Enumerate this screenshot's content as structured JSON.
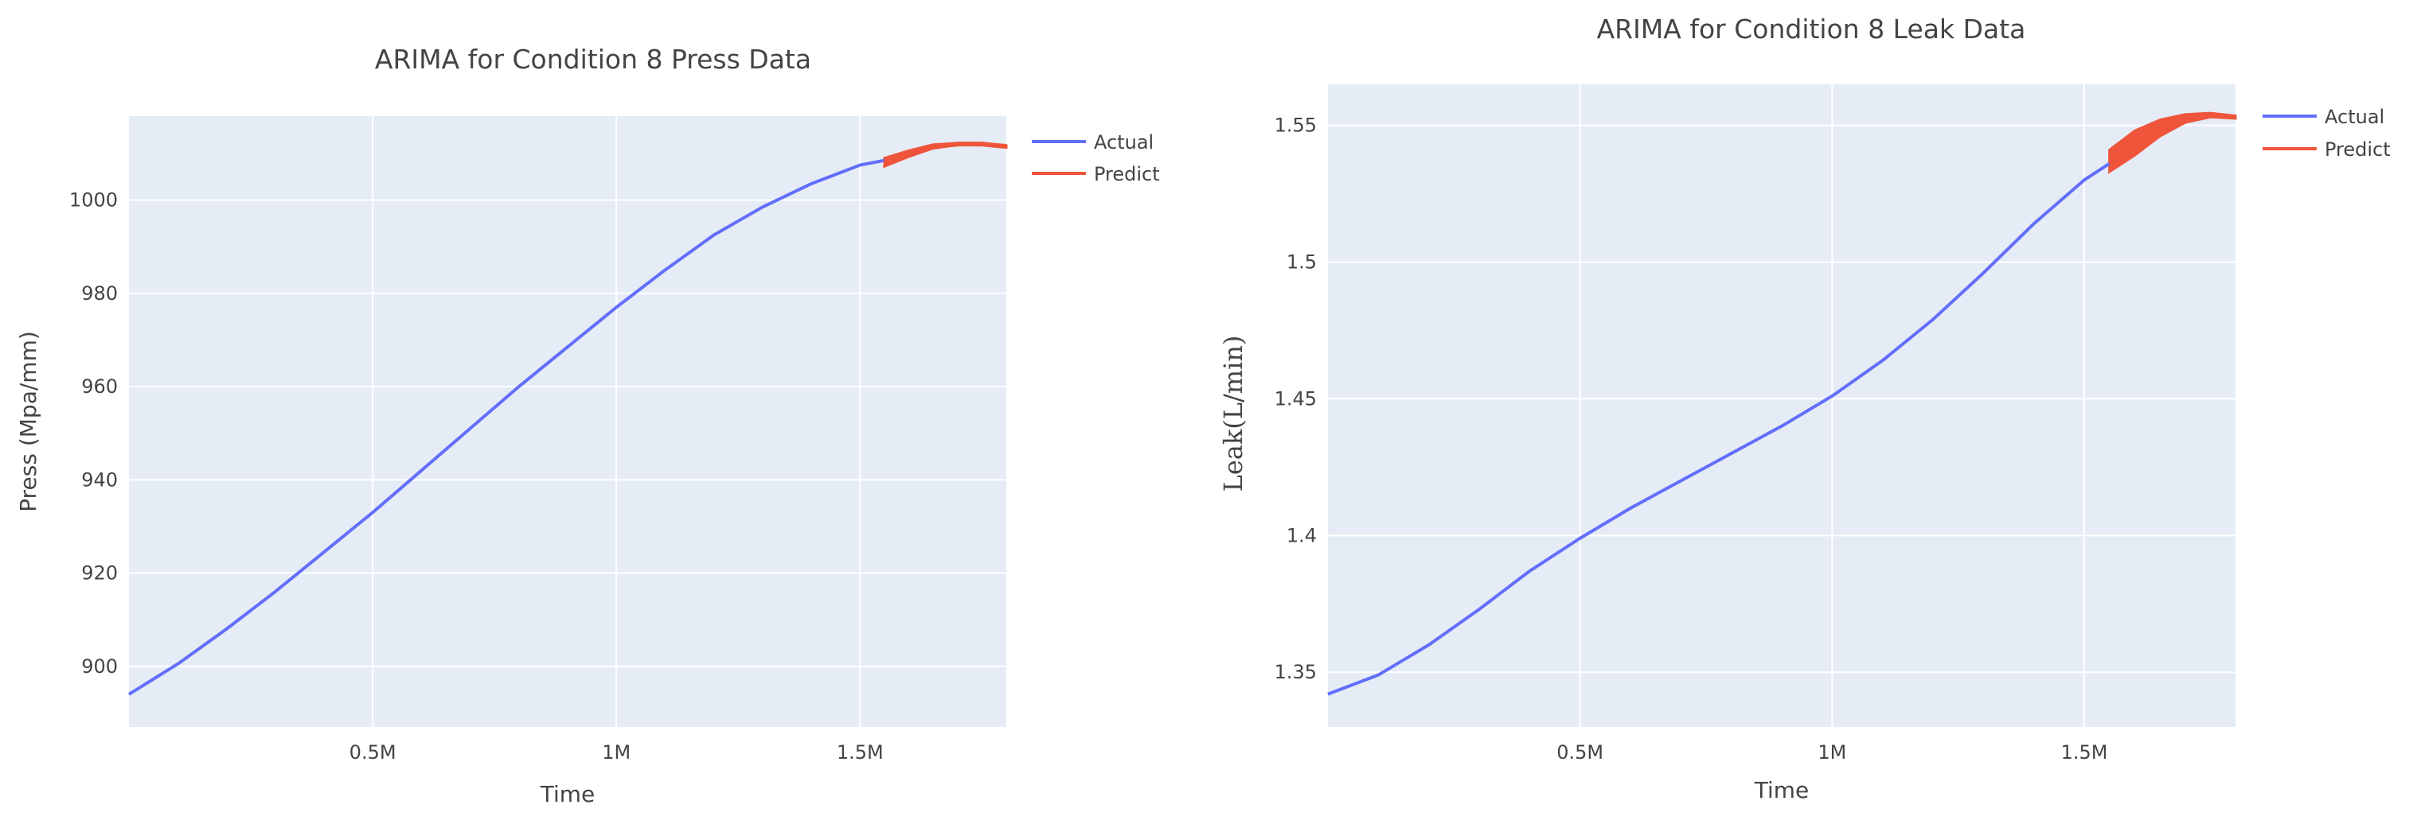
{
  "colors": {
    "plot_bg": "#e5ecf6",
    "grid": "#ffffff",
    "actual": "#636efa",
    "predict": "#ef553b"
  },
  "chart_data": [
    {
      "type": "line",
      "title": "ARIMA for Condition 8 Press Data",
      "xlabel": "Time",
      "ylabel": "Press (Mpa/mm)",
      "xlim": [
        0,
        1800000
      ],
      "ylim": [
        887,
        1018
      ],
      "xticks": [
        500000,
        1000000,
        1500000
      ],
      "xtick_labels": [
        "0.5M",
        "1M",
        "1.5M"
      ],
      "yticks": [
        900,
        920,
        940,
        960,
        980,
        1000
      ],
      "ytick_labels": [
        "900",
        "920",
        "940",
        "960",
        "980",
        "1000"
      ],
      "grid": true,
      "legend_position": "right",
      "series": [
        {
          "name": "Actual",
          "x": [
            0,
            100000,
            200000,
            300000,
            400000,
            500000,
            600000,
            700000,
            800000,
            900000,
            1000000,
            1100000,
            1200000,
            1300000,
            1400000,
            1500000,
            1550000
          ],
          "y": [
            894,
            900.5,
            908,
            916,
            924.5,
            933,
            942,
            951,
            960,
            968.5,
            977,
            985,
            992.5,
            998.5,
            1003.5,
            1007.5,
            1008.5
          ]
        },
        {
          "name": "Predict",
          "x": [
            1550000,
            1600000,
            1650000,
            1700000,
            1750000,
            1800000
          ],
          "y": [
            1008,
            1010,
            1011.5,
            1012,
            1012,
            1011.5
          ],
          "band_upper": [
            1009,
            1010.6,
            1011.9,
            1012.2,
            1012.1,
            1011.7
          ],
          "band_lower": [
            1007.2,
            1009.3,
            1011.1,
            1011.8,
            1011.9,
            1011.3
          ]
        }
      ]
    },
    {
      "type": "line",
      "title": "ARIMA for Condition 8 Leak Data",
      "xlabel": "Time",
      "ylabel": "Leak(L/min)",
      "xlim": [
        0,
        1800000
      ],
      "ylim": [
        1.33,
        1.565
      ],
      "xticks": [
        500000,
        1000000,
        1500000
      ],
      "xtick_labels": [
        "0.5M",
        "1M",
        "1.5M"
      ],
      "yticks": [
        1.35,
        1.4,
        1.45,
        1.5,
        1.55
      ],
      "ytick_labels": [
        "1.35",
        "1.4",
        "1.45",
        "1.5",
        "1.55"
      ],
      "grid": true,
      "legend_position": "right",
      "series": [
        {
          "name": "Actual",
          "x": [
            0,
            100000,
            200000,
            300000,
            400000,
            500000,
            600000,
            700000,
            800000,
            900000,
            1000000,
            1100000,
            1200000,
            1300000,
            1400000,
            1500000,
            1550000
          ],
          "y": [
            1.342,
            1.349,
            1.36,
            1.373,
            1.387,
            1.399,
            1.41,
            1.42,
            1.43,
            1.44,
            1.451,
            1.464,
            1.479,
            1.496,
            1.514,
            1.53,
            1.536
          ],
          "band_upper": [],
          "band_lower": []
        },
        {
          "name": "Predict",
          "x": [
            1550000,
            1600000,
            1650000,
            1700000,
            1750000,
            1800000
          ],
          "y": [
            1.536,
            1.544,
            1.55,
            1.553,
            1.554,
            1.553
          ],
          "band_upper": [
            1.541,
            1.548,
            1.552,
            1.554,
            1.5545,
            1.5535
          ],
          "band_lower": [
            1.533,
            1.539,
            1.546,
            1.551,
            1.553,
            1.5525
          ]
        }
      ]
    }
  ]
}
